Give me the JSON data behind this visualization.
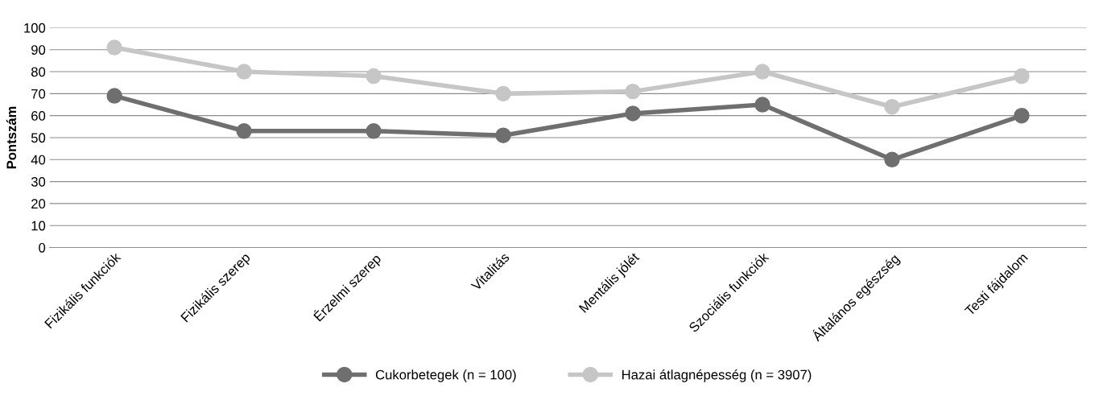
{
  "chart_data": {
    "type": "line",
    "ylabel": "Pontszám",
    "categories": [
      "Fizikális funkciók",
      "Fizikális szerep",
      "Érzelmi szerep",
      "Vitalitás",
      "Mentális jólét",
      "Szociális funkciók",
      "Általános egészség",
      "Testi fájdalom"
    ],
    "series": [
      {
        "name": "Cukorbetegek (n = 100)",
        "color": "#6f6f6f",
        "values": [
          69,
          53,
          53,
          51,
          61,
          65,
          40,
          60
        ]
      },
      {
        "name": "Hazai átlagnépesség (n = 3907)",
        "color": "#c6c6c6",
        "values": [
          91,
          80,
          78,
          70,
          71,
          80,
          64,
          78
        ]
      }
    ],
    "ylim": [
      0,
      100
    ],
    "yticks": [
      0,
      10,
      20,
      30,
      40,
      50,
      60,
      70,
      80,
      90,
      100
    ],
    "grid": "y",
    "legend": "bottom",
    "marker": "circle",
    "line_style": "solid"
  }
}
